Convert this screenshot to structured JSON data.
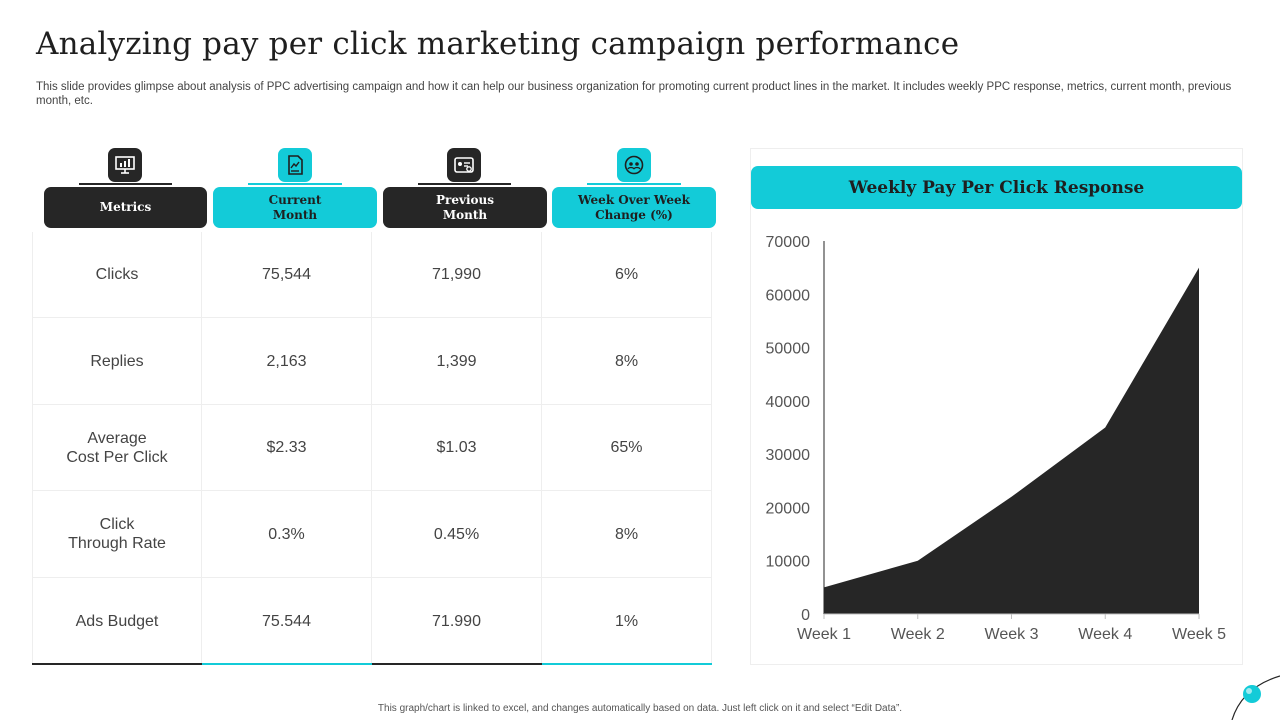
{
  "title": "Analyzing pay per click marketing campaign performance",
  "subtitle": "This slide provides glimpse about analysis of PPC advertising campaign and how it can help our business organization for promoting current product lines in the market. It includes weekly PPC response, metrics, current month, previous month, etc.",
  "columns": [
    {
      "label": "Metrics",
      "icon": "presentation-board-icon",
      "style": "dark"
    },
    {
      "label": "Current\nMonth",
      "icon": "document-chart-icon",
      "style": "teal"
    },
    {
      "label": "Previous\nMonth",
      "icon": "id-card-icon",
      "style": "dark"
    },
    {
      "label": "Week Over Week\nChange (%)",
      "icon": "team-cycle-icon",
      "style": "teal"
    }
  ],
  "rows": [
    [
      "Clicks",
      "75,544",
      "71,990",
      "6%"
    ],
    [
      "Replies",
      "2,163",
      "1,399",
      "8%"
    ],
    [
      "Average\nCost Per Click",
      "$2.33",
      "$1.03",
      "65%"
    ],
    [
      "Click\nThrough  Rate",
      "0.3%",
      "0.45%",
      "8%"
    ],
    [
      "Ads Budget",
      "75.544",
      "71.990",
      "1%"
    ]
  ],
  "chart_title": "Weekly Pay Per Click Response",
  "chart_data": {
    "type": "area",
    "title": "Weekly Pay Per Click Response",
    "categories": [
      "Week 1",
      "Week 2",
      "Week 3",
      "Week 4",
      "Week 5"
    ],
    "series": [
      {
        "values": [
          5000,
          10000,
          22000,
          35000,
          65000
        ]
      }
    ],
    "ylim": [
      0,
      70000
    ],
    "yticks": [
      "0",
      "10000",
      "20000",
      "30000",
      "40000",
      "50000",
      "60000",
      "70000"
    ],
    "grid": false,
    "fill_color": "#262626"
  },
  "footer": "This graph/chart is linked to excel, and changes automatically based on data. Just left click on it and select “Edit Data”.",
  "colors": {
    "accent": "#13cbd8",
    "dark": "#262626"
  }
}
